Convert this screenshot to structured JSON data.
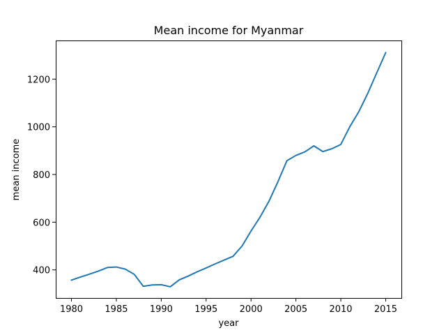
{
  "chart_data": {
    "type": "line",
    "title": "Mean income for Myanmar",
    "xlabel": "year",
    "ylabel": "mean income",
    "xlim": [
      1978.25,
      2016.75
    ],
    "ylim": [
      282,
      1362
    ],
    "xticks": [
      1980,
      1985,
      1990,
      1995,
      2000,
      2005,
      2010,
      2015
    ],
    "yticks": [
      400,
      600,
      800,
      1000,
      1200
    ],
    "grid": false,
    "line_color": "#1f77b4",
    "series": [
      {
        "x": [
          1980,
          1981,
          1982,
          1983,
          1984,
          1985,
          1986,
          1987,
          1988,
          1989,
          1990,
          1991,
          1992,
          1993,
          1994,
          1995,
          1996,
          1997,
          1998,
          1999,
          2000,
          2001,
          2002,
          2003,
          2004,
          2005,
          2006,
          2007,
          2008,
          2009,
          2010,
          2011,
          2012,
          2013,
          2014,
          2015
        ],
        "values": [
          357,
          370,
          382,
          395,
          410,
          412,
          403,
          381,
          331,
          337,
          338,
          329,
          358,
          374,
          392,
          408,
          425,
          441,
          457,
          500,
          563,
          621,
          688,
          770,
          858,
          880,
          895,
          920,
          896,
          908,
          926,
          1000,
          1063,
          1140,
          1226,
          1311
        ]
      }
    ]
  }
}
